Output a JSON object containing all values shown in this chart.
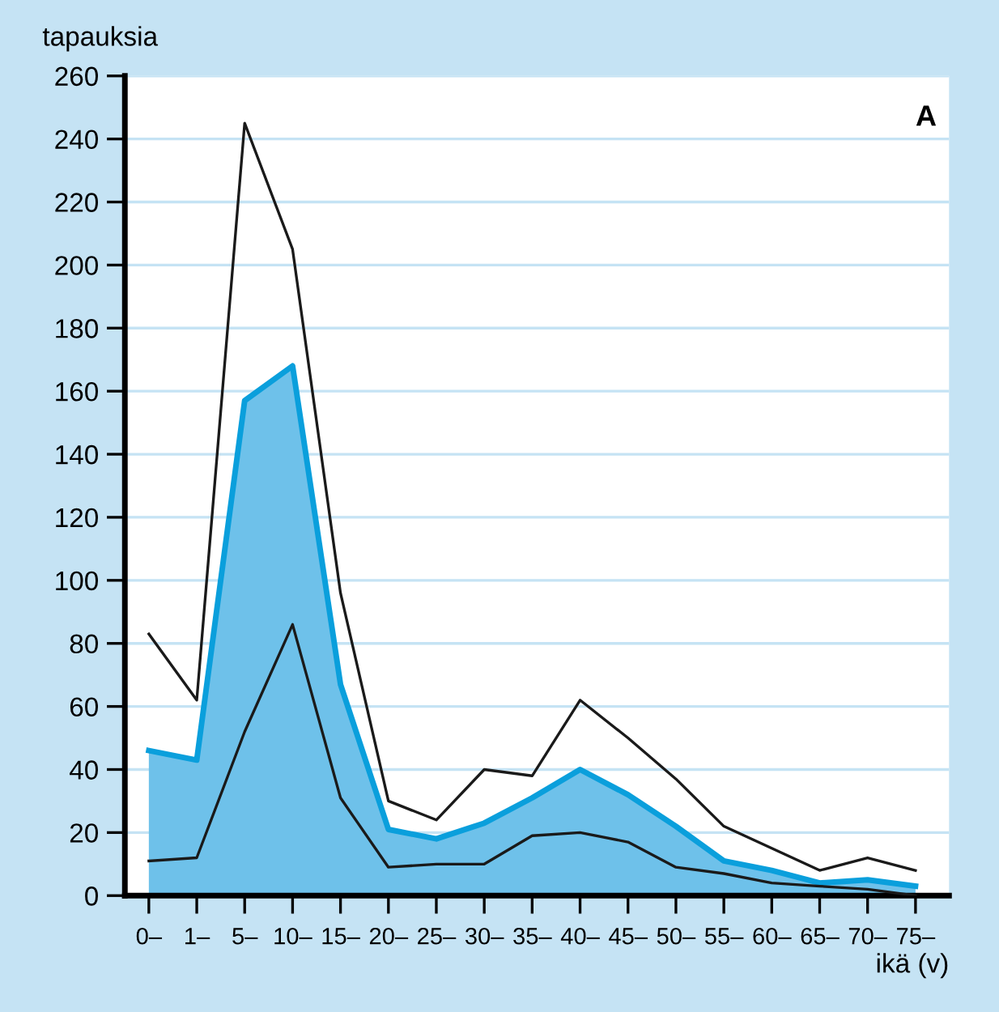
{
  "chart_data": {
    "type": "line",
    "ylabel": "tapauksia",
    "xlabel": "ikä (v)",
    "annotations": [
      "A"
    ],
    "categories": [
      "0–",
      "1–",
      "5–",
      "10–",
      "15–",
      "20–",
      "25–",
      "30–",
      "35–",
      "40–",
      "45–",
      "50–",
      "55–",
      "60–",
      "65–",
      "70–",
      "75–"
    ],
    "series": [
      {
        "type": "area",
        "color": "#0a9fdc",
        "values": [
          46,
          43,
          157,
          168,
          67,
          21,
          18,
          23,
          31,
          40,
          32,
          22,
          11,
          8,
          4,
          5,
          3
        ]
      },
      {
        "color": "#1a1a1a",
        "values": [
          83,
          62,
          245,
          205,
          96,
          30,
          24,
          40,
          38,
          62,
          50,
          37,
          22,
          15,
          8,
          12,
          8
        ]
      },
      {
        "color": "#1a1a1a",
        "values": [
          11,
          12,
          52,
          86,
          31,
          9,
          10,
          10,
          19,
          20,
          17,
          9,
          7,
          4,
          3,
          2,
          0
        ]
      }
    ],
    "ylim": [
      0,
      260
    ],
    "yticks": [
      0,
      20,
      40,
      60,
      80,
      100,
      120,
      140,
      160,
      180,
      200,
      220,
      240,
      260
    ],
    "grid": "y"
  }
}
